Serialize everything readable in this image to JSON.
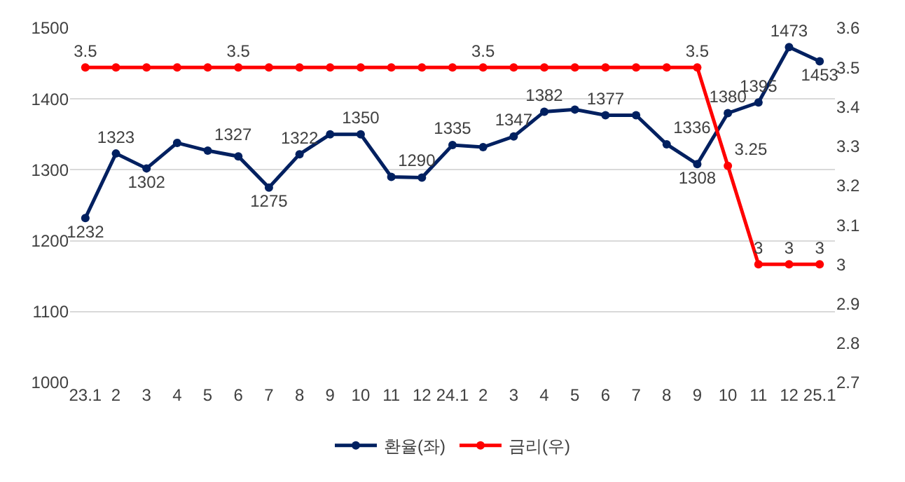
{
  "chart_data": {
    "type": "line",
    "categories": [
      "23.1",
      "2",
      "3",
      "4",
      "5",
      "6",
      "7",
      "8",
      "9",
      "10",
      "11",
      "12",
      "24.1",
      "2",
      "3",
      "4",
      "5",
      "6",
      "7",
      "8",
      "9",
      "10",
      "11",
      "12",
      "25.1"
    ],
    "series": [
      {
        "name": "환율(좌)",
        "color": "#002060",
        "axis": "y",
        "values": [
          1232,
          1323,
          1302,
          1338,
          1327,
          1319,
          1275,
          1322,
          1350,
          1350,
          1290,
          1289,
          1335,
          1332,
          1347,
          1382,
          1385,
          1377,
          1377,
          1336,
          1308,
          1380,
          1395,
          1473,
          1453
        ],
        "value_labels": [
          "1232",
          "1323",
          "1302",
          null,
          "1327",
          null,
          "1275",
          "1322",
          null,
          "1350",
          "1290",
          null,
          "1335",
          null,
          "1347",
          "1382",
          null,
          "1377",
          null,
          "1336",
          "1308",
          "1380",
          "1395",
          "1473",
          "1453"
        ]
      },
      {
        "name": "금리(우)",
        "color": "#ff0000",
        "axis": "y2",
        "values": [
          3.5,
          3.5,
          3.5,
          3.5,
          3.5,
          3.5,
          3.5,
          3.5,
          3.5,
          3.5,
          3.5,
          3.5,
          3.5,
          3.5,
          3.5,
          3.5,
          3.5,
          3.5,
          3.5,
          3.5,
          3.5,
          3.25,
          3,
          3,
          3
        ],
        "value_labels": [
          "3.5",
          null,
          null,
          null,
          null,
          "3.5",
          null,
          null,
          null,
          null,
          null,
          null,
          null,
          "3.5",
          null,
          null,
          null,
          null,
          null,
          null,
          "3.5",
          "3.25",
          "3",
          "3",
          "3"
        ]
      }
    ],
    "ylim": [
      1000,
      1500
    ],
    "yticks": [
      1000,
      1100,
      1200,
      1300,
      1400,
      1500
    ],
    "y2lim": [
      2.7,
      3.6
    ],
    "y2ticks": [
      2.7,
      2.8,
      2.9,
      3,
      3.1,
      3.2,
      3.3,
      3.4,
      3.5,
      3.6
    ],
    "grid": "y",
    "legend": "bottom",
    "marker": "circle",
    "line_style": "solid"
  }
}
